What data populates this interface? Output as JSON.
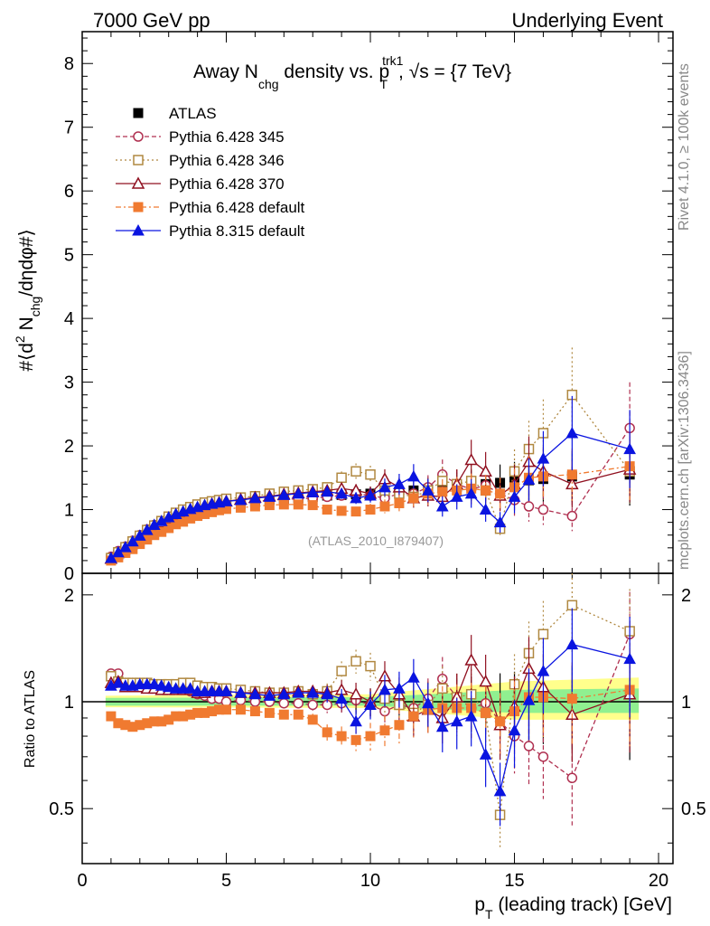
{
  "header": {
    "left": "7000 GeV pp",
    "right": "Underlying Event"
  },
  "side": {
    "rivet": "Rivet 4.1.0, ≥ 100k events",
    "mcplots": "mcplots.cern.ch [arXiv:1306.3436]"
  },
  "chart_data": {
    "type": "scatter",
    "title": "Away N_chg density vs. p_T^trk1, √s = {7 TeV}",
    "title_parts": {
      "pre": "Away N",
      "sub1": "chg",
      "mid": " density vs. p",
      "sub2": "T",
      "sup2": "trk1",
      "post": ", √s = {7 TeV}"
    },
    "ylabel": "#⟨d² N_chg/dηdφ#⟩",
    "ylabel_parts": {
      "pre": "#⟨d",
      "sup": "2",
      "mid": " N",
      "sub": "chg",
      "post": "/dηdφ#⟩"
    },
    "ratio_ylabel": "Ratio to ATLAS",
    "xlabel": "p_T (leading track) [GeV]",
    "xlabel_parts": {
      "pre": "p",
      "sub": "T",
      "post": " (leading track) [GeV]"
    },
    "watermark": "(ATLAS_2010_I879407)",
    "xlim": [
      0,
      20.5
    ],
    "ylim": [
      0,
      8.5
    ],
    "ratio_ylim": [
      0.35,
      2.3
    ],
    "xticks": [
      "0",
      "5",
      "10",
      "15",
      "20"
    ],
    "yticks": [
      "0",
      "1",
      "2",
      "3",
      "4",
      "5",
      "6",
      "7",
      "8"
    ],
    "ratio_yticks": [
      "0.5",
      "1",
      "2"
    ],
    "x": [
      1.0,
      1.25,
      1.5,
      1.75,
      2.0,
      2.25,
      2.5,
      2.75,
      3.0,
      3.25,
      3.5,
      3.75,
      4.0,
      4.25,
      4.5,
      4.75,
      5.0,
      5.5,
      6.0,
      6.5,
      7.0,
      7.5,
      8.0,
      8.5,
      9.0,
      9.5,
      10.0,
      10.5,
      11.0,
      11.5,
      12.0,
      12.5,
      13.0,
      13.5,
      14.0,
      14.5,
      15.0,
      15.5,
      16.0,
      17.0,
      19.0
    ],
    "legend_position": "top-left",
    "series": [
      {
        "name": "ATLAS",
        "color": "#000000",
        "marker": "square-filled",
        "line": "none",
        "values": [
          0.22,
          0.29,
          0.37,
          0.45,
          0.53,
          0.61,
          0.68,
          0.74,
          0.8,
          0.85,
          0.89,
          0.93,
          0.97,
          1.0,
          1.02,
          1.04,
          1.06,
          1.09,
          1.12,
          1.15,
          1.17,
          1.18,
          1.2,
          1.22,
          1.23,
          1.24,
          1.25,
          1.26,
          1.28,
          1.3,
          1.32,
          1.34,
          1.36,
          1.38,
          1.4,
          1.42,
          1.44,
          1.46,
          1.48,
          1.52,
          1.55
        ],
        "ratio": [
          1,
          1,
          1,
          1,
          1,
          1,
          1,
          1,
          1,
          1,
          1,
          1,
          1,
          1,
          1,
          1,
          1,
          1,
          1,
          1,
          1,
          1,
          1,
          1,
          1,
          1,
          1,
          1,
          1,
          1,
          1,
          1,
          1,
          1,
          1,
          1,
          1,
          1,
          1,
          1,
          1
        ]
      },
      {
        "name": "Pythia 6.428 345",
        "color": "#b03050",
        "marker": "circle-open",
        "line": "dashed",
        "values": [
          0.26,
          0.35,
          0.42,
          0.51,
          0.6,
          0.69,
          0.76,
          0.82,
          0.88,
          0.93,
          0.96,
          1.0,
          1.02,
          1.04,
          1.04,
          1.06,
          1.06,
          1.1,
          1.12,
          1.15,
          1.16,
          1.17,
          1.18,
          1.2,
          1.22,
          1.25,
          1.22,
          1.18,
          1.25,
          1.25,
          1.35,
          1.55,
          1.4,
          1.32,
          1.38,
          1.25,
          1.15,
          1.05,
          1.0,
          0.9,
          2.28
        ],
        "ratio": [
          1.2,
          1.2,
          1.13,
          1.13,
          1.13,
          1.13,
          1.12,
          1.11,
          1.1,
          1.09,
          1.08,
          1.07,
          1.05,
          1.04,
          1.02,
          1.02,
          1.0,
          1.01,
          1.0,
          1.0,
          0.99,
          0.99,
          0.98,
          0.98,
          0.99,
          1.01,
          0.98,
          0.94,
          0.98,
          0.96,
          1.02,
          1.16,
          1.03,
          0.96,
          0.99,
          0.88,
          0.8,
          0.75,
          0.7,
          0.61,
          1.55
        ]
      },
      {
        "name": "Pythia 6.428 346",
        "color": "#b08840",
        "marker": "square-open",
        "line": "dotted",
        "values": [
          0.24,
          0.33,
          0.41,
          0.5,
          0.59,
          0.68,
          0.75,
          0.82,
          0.89,
          0.95,
          1.0,
          1.04,
          1.08,
          1.11,
          1.13,
          1.15,
          1.17,
          1.19,
          1.21,
          1.25,
          1.28,
          1.3,
          1.32,
          1.35,
          1.5,
          1.6,
          1.55,
          1.3,
          1.25,
          1.2,
          1.3,
          1.45,
          1.4,
          1.45,
          1.3,
          0.7,
          1.6,
          1.95,
          2.2,
          2.8,
          1.6
        ],
        "ratio": [
          1.18,
          1.14,
          1.13,
          1.13,
          1.13,
          1.13,
          1.12,
          1.12,
          1.12,
          1.12,
          1.13,
          1.13,
          1.11,
          1.1,
          1.1,
          1.09,
          1.09,
          1.08,
          1.07,
          1.06,
          1.06,
          1.07,
          1.05,
          1.07,
          1.22,
          1.3,
          1.26,
          1.02,
          0.98,
          0.93,
          0.98,
          1.09,
          1.03,
          1.05,
          0.93,
          0.48,
          1.12,
          1.37,
          1.55,
          1.87,
          1.58
        ]
      },
      {
        "name": "Pythia 6.428 370",
        "color": "#901020",
        "marker": "triangle-open",
        "line": "solid",
        "values": [
          0.23,
          0.32,
          0.4,
          0.49,
          0.58,
          0.67,
          0.74,
          0.8,
          0.86,
          0.92,
          0.96,
          1.0,
          1.03,
          1.06,
          1.09,
          1.11,
          1.13,
          1.16,
          1.19,
          1.21,
          1.24,
          1.26,
          1.28,
          1.3,
          1.33,
          1.3,
          1.25,
          1.48,
          1.35,
          1.18,
          1.22,
          1.2,
          1.4,
          1.78,
          1.6,
          1.22,
          1.4,
          1.75,
          1.6,
          1.4,
          1.63
        ],
        "ratio": [
          1.13,
          1.14,
          1.1,
          1.1,
          1.1,
          1.09,
          1.09,
          1.08,
          1.08,
          1.08,
          1.08,
          1.08,
          1.06,
          1.06,
          1.07,
          1.07,
          1.07,
          1.06,
          1.06,
          1.06,
          1.06,
          1.07,
          1.07,
          1.06,
          1.08,
          1.05,
          1.0,
          1.18,
          1.05,
          0.91,
          0.95,
          0.9,
          1.03,
          1.31,
          1.14,
          0.86,
          0.97,
          1.24,
          1.1,
          0.92,
          1.05
        ]
      },
      {
        "name": "Pythia 6.428 default",
        "color": "#f07a30",
        "marker": "square-filled",
        "line": "dashdot",
        "values": [
          0.2,
          0.25,
          0.32,
          0.38,
          0.46,
          0.53,
          0.6,
          0.65,
          0.71,
          0.77,
          0.81,
          0.86,
          0.9,
          0.93,
          0.96,
          0.99,
          1.01,
          1.03,
          1.05,
          1.07,
          1.08,
          1.08,
          1.07,
          1.0,
          0.98,
          0.97,
          1.0,
          1.05,
          1.1,
          1.18,
          1.25,
          1.28,
          1.3,
          1.33,
          1.3,
          1.25,
          1.35,
          1.5,
          1.52,
          1.55,
          1.68
        ],
        "ratio": [
          0.91,
          0.87,
          0.86,
          0.85,
          0.86,
          0.87,
          0.88,
          0.88,
          0.89,
          0.91,
          0.91,
          0.92,
          0.93,
          0.93,
          0.94,
          0.95,
          0.95,
          0.95,
          0.94,
          0.93,
          0.92,
          0.92,
          0.89,
          0.82,
          0.8,
          0.78,
          0.8,
          0.83,
          0.86,
          0.91,
          0.95,
          0.96,
          0.96,
          0.96,
          0.93,
          0.88,
          0.94,
          1.03,
          1.03,
          1.02,
          1.08
        ]
      },
      {
        "name": "Pythia 8.315 default",
        "color": "#0a14e0",
        "marker": "triangle-filled",
        "line": "solid",
        "values": [
          0.24,
          0.33,
          0.41,
          0.5,
          0.59,
          0.68,
          0.76,
          0.82,
          0.88,
          0.93,
          0.97,
          1.01,
          1.04,
          1.07,
          1.09,
          1.11,
          1.13,
          1.15,
          1.18,
          1.2,
          1.23,
          1.25,
          1.27,
          1.28,
          1.25,
          1.18,
          1.22,
          1.35,
          1.4,
          1.52,
          1.3,
          1.05,
          1.2,
          1.25,
          1.0,
          0.8,
          1.2,
          1.47,
          1.8,
          2.2,
          1.95
        ],
        "ratio": [
          1.11,
          1.13,
          1.11,
          1.11,
          1.12,
          1.12,
          1.12,
          1.11,
          1.1,
          1.09,
          1.09,
          1.09,
          1.07,
          1.07,
          1.07,
          1.07,
          1.07,
          1.06,
          1.05,
          1.04,
          1.05,
          1.06,
          1.06,
          1.05,
          1.02,
          0.88,
          0.98,
          1.08,
          1.09,
          1.17,
          0.99,
          0.85,
          0.88,
          0.91,
          0.71,
          0.56,
          0.83,
          1.01,
          1.22,
          1.45,
          1.32
        ]
      }
    ],
    "band_outer_color": "#ffff8c",
    "band_inner_color": "#90f090"
  }
}
